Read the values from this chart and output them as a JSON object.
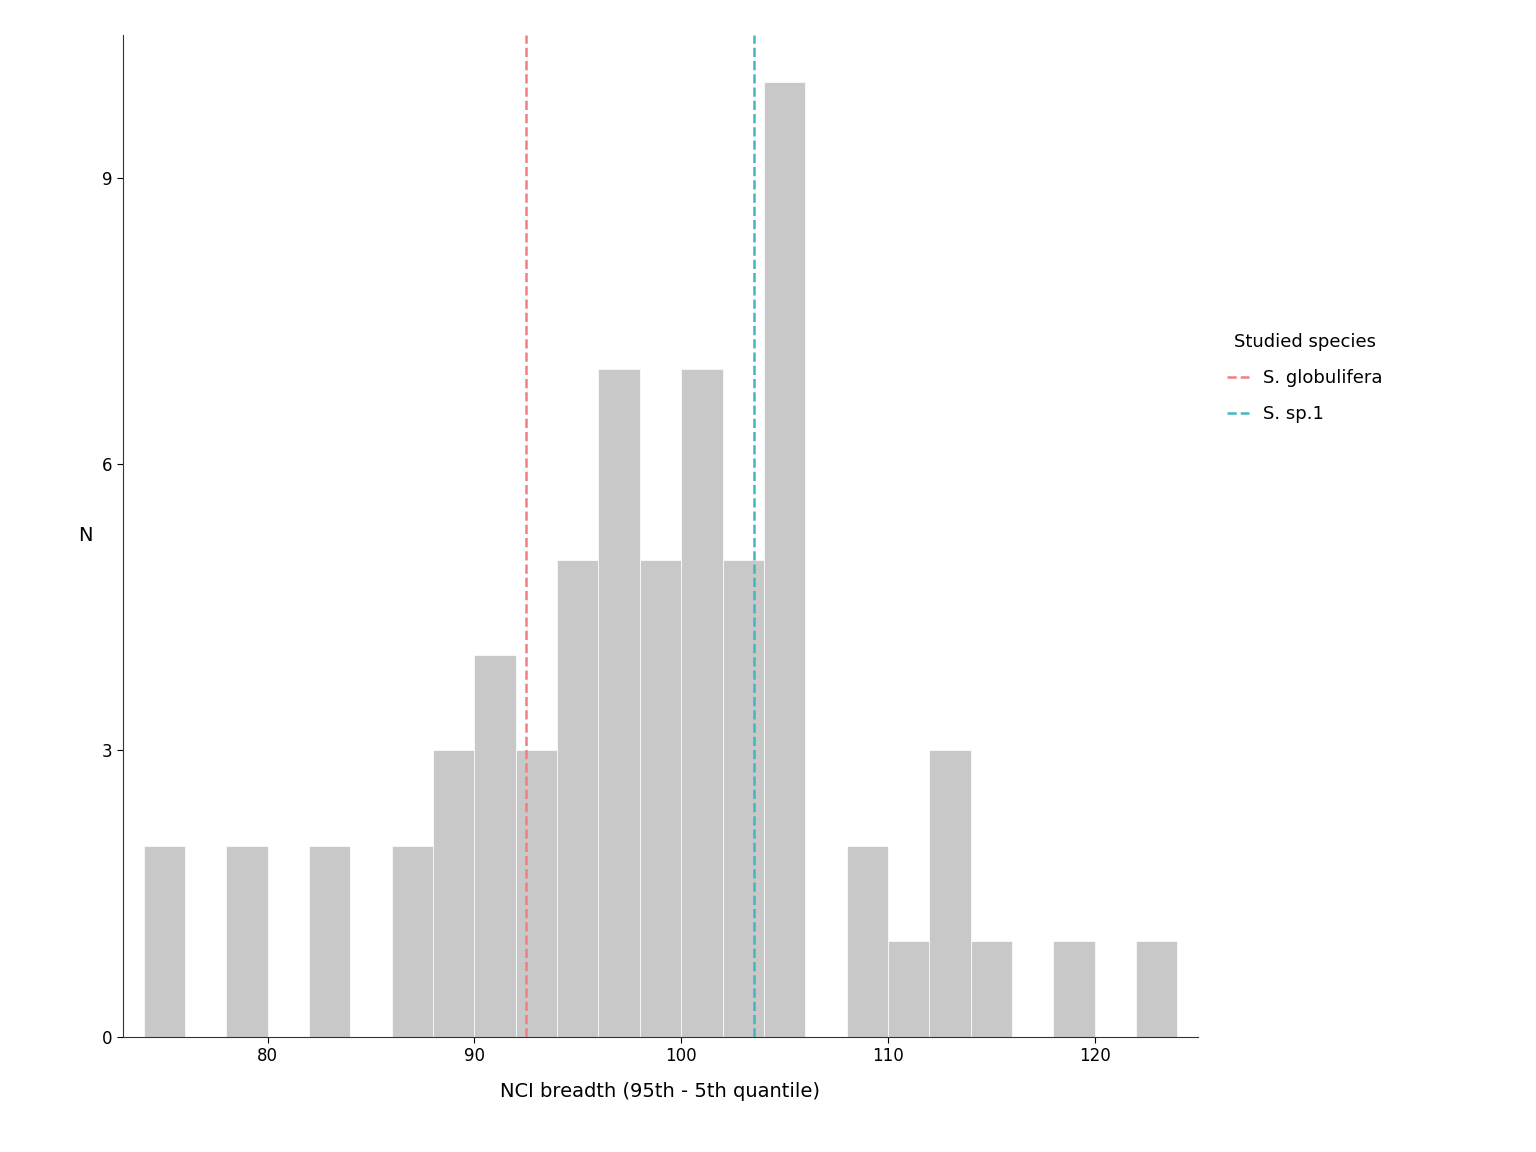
{
  "bin_edges": [
    74,
    76,
    78,
    80,
    82,
    84,
    86,
    88,
    90,
    92,
    94,
    96,
    98,
    100,
    102,
    104,
    106,
    108,
    110,
    112,
    114,
    116,
    118,
    120,
    122,
    124
  ],
  "bin_counts": [
    2,
    0,
    2,
    0,
    2,
    0,
    2,
    3,
    4,
    3,
    5,
    7,
    5,
    7,
    5,
    10,
    0,
    2,
    1,
    3,
    1,
    0,
    1,
    0,
    1
  ],
  "red_line": 92.5,
  "cyan_line": 103.5,
  "bar_color": "#c8c8c8",
  "bar_edgecolor": "#ffffff",
  "red_color": "#f08080",
  "cyan_color": "#40b8c0",
  "xlabel": "NCI breadth (95th - 5th quantile)",
  "ylabel": "N",
  "xlim": [
    73,
    125
  ],
  "ylim": [
    0,
    10.5
  ],
  "xticks": [
    80,
    90,
    100,
    110,
    120
  ],
  "yticks": [
    0,
    3,
    6,
    9
  ],
  "legend_title": "Studied species",
  "legend_labels": [
    "S. globulifera",
    "S. sp.1"
  ],
  "background_color": "#ffffff",
  "label_fontsize": 14,
  "tick_fontsize": 12,
  "legend_fontsize": 13
}
